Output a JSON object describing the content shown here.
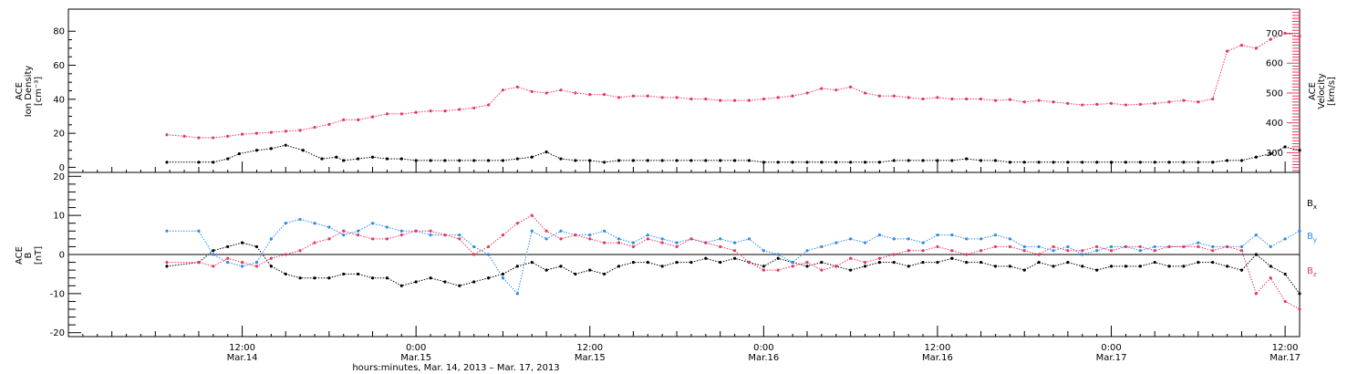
{
  "colors": {
    "black": "#000000",
    "pink": "#e8365f",
    "blue": "#2a8cf0"
  },
  "chart_data": [
    {
      "type": "scatter",
      "panel": "top",
      "ylabel_lines": [
        "ACE",
        "Ion Density"
      ],
      "ylabel_units": "[cm⁻³]",
      "y2label_lines": [
        "ACE",
        "Velocity"
      ],
      "y2label_units": "[km/s]",
      "xlim": [
        0,
        85
      ],
      "ylim": [
        -3,
        93
      ],
      "y2lim": [
        234,
        781
      ],
      "yticks": [
        0,
        20,
        40,
        60,
        80
      ],
      "y2ticks": [
        300,
        400,
        500,
        600,
        700
      ],
      "series": [
        {
          "name": "Ion Density",
          "color": "#000000",
          "axis": "left",
          "x": [
            6.8,
            9,
            10,
            11,
            11.8,
            13,
            14,
            15,
            16.2,
            17.5,
            18.5,
            19,
            20,
            21,
            22,
            23,
            24,
            25,
            26,
            27,
            28,
            29,
            30,
            31,
            32,
            33,
            34,
            35,
            36,
            37,
            38,
            39,
            40,
            41,
            42,
            43,
            44,
            45,
            46,
            47,
            48,
            49,
            50,
            51,
            52,
            53,
            54,
            55,
            56,
            57,
            58,
            59,
            60,
            61,
            62,
            63,
            64,
            65,
            66,
            67,
            68,
            69,
            70,
            71,
            72,
            73,
            74,
            75,
            76,
            77,
            78,
            79,
            80,
            81,
            82,
            83,
            84,
            85
          ],
          "y": [
            3,
            3,
            3,
            5,
            8,
            10,
            11,
            13,
            10,
            5,
            6,
            4,
            5,
            6,
            5,
            5,
            4,
            4,
            4,
            4,
            4,
            4,
            4,
            5,
            6,
            9,
            5,
            4,
            4,
            3,
            4,
            4,
            4,
            4,
            4,
            4,
            4,
            4,
            4,
            4,
            3,
            3,
            3,
            3,
            3,
            3,
            3,
            3,
            3,
            4,
            4,
            4,
            4,
            4,
            5,
            4,
            4,
            3,
            3,
            3,
            3,
            3,
            3,
            3,
            3,
            3,
            3,
            3,
            3,
            3,
            3,
            3,
            4,
            4,
            6,
            8,
            12,
            10
          ]
        },
        {
          "name": "Velocity",
          "color": "#e8365f",
          "axis": "right",
          "x": [
            6.8,
            8,
            9,
            10,
            11,
            12,
            13,
            14,
            15,
            16,
            17,
            18,
            19,
            20,
            21,
            22,
            23,
            24,
            25,
            26,
            27,
            28,
            29,
            30,
            31,
            32,
            33,
            34,
            35,
            36,
            37,
            38,
            39,
            40,
            41,
            42,
            43,
            44,
            45,
            46,
            47,
            48,
            49,
            50,
            51,
            52,
            53,
            54,
            55,
            56,
            57,
            58,
            59,
            60,
            61,
            62,
            63,
            64,
            65,
            66,
            67,
            68,
            69,
            70,
            71,
            72,
            73,
            74,
            75,
            76,
            77,
            78,
            79,
            80,
            81,
            82,
            83,
            84,
            85
          ],
          "y": [
            360,
            355,
            350,
            350,
            355,
            362,
            365,
            368,
            372,
            375,
            385,
            395,
            410,
            410,
            420,
            430,
            430,
            435,
            440,
            440,
            445,
            450,
            460,
            510,
            520,
            505,
            500,
            510,
            500,
            495,
            495,
            485,
            490,
            490,
            485,
            485,
            480,
            480,
            475,
            475,
            475,
            480,
            485,
            490,
            500,
            515,
            510,
            520,
            500,
            490,
            490,
            485,
            480,
            485,
            480,
            480,
            480,
            475,
            478,
            470,
            475,
            470,
            465,
            460,
            462,
            465,
            460,
            462,
            465,
            470,
            475,
            470,
            480,
            640,
            660,
            650,
            680,
            700,
            690
          ]
        }
      ]
    },
    {
      "type": "scatter",
      "panel": "bottom",
      "ylabel_lines": [
        "ACE",
        "B"
      ],
      "ylabel_units": "[nT]",
      "xlim": [
        0,
        85
      ],
      "ylim": [
        -21,
        21
      ],
      "yticks": [
        -20,
        -10,
        0,
        10,
        20
      ],
      "reference_line": 0,
      "legend_placement": "right",
      "series": [
        {
          "name": "Bx",
          "label_main": "B",
          "label_sub": "x",
          "color": "#000000",
          "x": [
            6.8,
            9,
            10,
            11,
            12,
            13,
            14,
            15,
            16,
            17,
            18,
            19,
            20,
            21,
            22,
            23,
            24,
            25,
            26,
            27,
            28,
            29,
            30,
            31,
            32,
            33,
            34,
            35,
            36,
            37,
            38,
            39,
            40,
            41,
            42,
            43,
            44,
            45,
            46,
            47,
            48,
            49,
            50,
            51,
            52,
            53,
            54,
            55,
            56,
            57,
            58,
            59,
            60,
            61,
            62,
            63,
            64,
            65,
            66,
            67,
            68,
            69,
            70,
            71,
            72,
            73,
            74,
            75,
            76,
            77,
            78,
            79,
            80,
            81,
            82,
            83,
            84,
            85
          ],
          "y": [
            -3,
            -2,
            1,
            2,
            3,
            2,
            -3,
            -5,
            -6,
            -6,
            -6,
            -5,
            -5,
            -6,
            -6,
            -8,
            -7,
            -6,
            -7,
            -8,
            -7,
            -6,
            -5,
            -3,
            -2,
            -4,
            -3,
            -5,
            -4,
            -5,
            -3,
            -2,
            -2,
            -3,
            -2,
            -2,
            -1,
            -2,
            -1,
            -2,
            -3,
            -1,
            -2,
            -3,
            -2,
            -3,
            -4,
            -3,
            -2,
            -2,
            -3,
            -2,
            -2,
            -1,
            -2,
            -2,
            -3,
            -3,
            -4,
            -2,
            -3,
            -2,
            -3,
            -4,
            -3,
            -3,
            -3,
            -2,
            -3,
            -3,
            -2,
            -2,
            -3,
            -4,
            0,
            -3,
            -5,
            -10
          ]
        },
        {
          "name": "By",
          "label_main": "B",
          "label_sub": "y",
          "color": "#2a8cf0",
          "x": [
            6.8,
            9,
            10,
            11,
            12,
            13,
            14,
            15,
            16,
            17,
            18,
            19,
            20,
            21,
            22,
            23,
            24,
            25,
            26,
            27,
            28,
            29,
            30,
            31,
            32,
            33,
            34,
            35,
            36,
            37,
            38,
            39,
            40,
            41,
            42,
            43,
            44,
            45,
            46,
            47,
            48,
            49,
            50,
            51,
            52,
            53,
            54,
            55,
            56,
            57,
            58,
            59,
            60,
            61,
            62,
            63,
            64,
            65,
            66,
            67,
            68,
            69,
            70,
            71,
            72,
            73,
            74,
            75,
            76,
            77,
            78,
            79,
            80,
            81,
            82,
            83,
            84,
            85
          ],
          "y": [
            6,
            6,
            0,
            -2,
            -3,
            -2,
            4,
            8,
            9,
            8,
            7,
            5,
            6,
            8,
            7,
            6,
            6,
            5,
            5,
            5,
            2,
            0,
            -6,
            -10,
            6,
            4,
            6,
            5,
            5,
            6,
            4,
            3,
            5,
            4,
            3,
            4,
            3,
            4,
            3,
            4,
            1,
            0,
            -2,
            1,
            2,
            3,
            4,
            3,
            5,
            4,
            4,
            3,
            5,
            5,
            4,
            4,
            5,
            4,
            2,
            2,
            1,
            2,
            0,
            1,
            2,
            2,
            1,
            2,
            2,
            2,
            3,
            2,
            2,
            2,
            5,
            2,
            4,
            6
          ]
        },
        {
          "name": "Bz",
          "label_main": "B",
          "label_sub": "z",
          "color": "#e8365f",
          "x": [
            6.8,
            9,
            10,
            11,
            12,
            13,
            14,
            15,
            16,
            17,
            18,
            19,
            20,
            21,
            22,
            23,
            24,
            25,
            26,
            27,
            28,
            29,
            30,
            31,
            32,
            33,
            34,
            35,
            36,
            37,
            38,
            39,
            40,
            41,
            42,
            43,
            44,
            45,
            46,
            47,
            48,
            49,
            50,
            51,
            52,
            53,
            54,
            55,
            56,
            57,
            58,
            59,
            60,
            61,
            62,
            63,
            64,
            65,
            66,
            67,
            68,
            69,
            70,
            71,
            72,
            73,
            74,
            75,
            76,
            77,
            78,
            79,
            80,
            81,
            82,
            83,
            84,
            85
          ],
          "y": [
            -2,
            -2,
            -3,
            -1,
            -2,
            -3,
            -1,
            0,
            1,
            3,
            4,
            6,
            5,
            4,
            4,
            5,
            6,
            6,
            5,
            4,
            0,
            2,
            5,
            8,
            10,
            6,
            4,
            5,
            4,
            3,
            3,
            2,
            4,
            3,
            2,
            4,
            3,
            2,
            1,
            -2,
            -4,
            -4,
            -3,
            -2,
            -4,
            -3,
            -1,
            -2,
            -1,
            0,
            1,
            1,
            2,
            1,
            0,
            1,
            2,
            2,
            1,
            0,
            2,
            1,
            1,
            2,
            1,
            2,
            2,
            1,
            2,
            2,
            2,
            1,
            2,
            1,
            -10,
            -6,
            -12,
            -14
          ]
        }
      ]
    }
  ],
  "x_axis": {
    "ticks": [
      {
        "x": 12,
        "time": "12:00",
        "date": "Mar.14"
      },
      {
        "x": 24,
        "time": "0:00",
        "date": "Mar.15"
      },
      {
        "x": 36,
        "time": "12:00",
        "date": "Mar.15"
      },
      {
        "x": 48,
        "time": "0:00",
        "date": "Mar.16"
      },
      {
        "x": 60,
        "time": "12:00",
        "date": "Mar.16"
      },
      {
        "x": 72,
        "time": "0:00",
        "date": "Mar.17"
      },
      {
        "x": 84,
        "time": "12:00",
        "date": "Mar.17"
      }
    ],
    "title": "hours:minutes, Mar. 14, 2013 – Mar. 17, 2013"
  }
}
